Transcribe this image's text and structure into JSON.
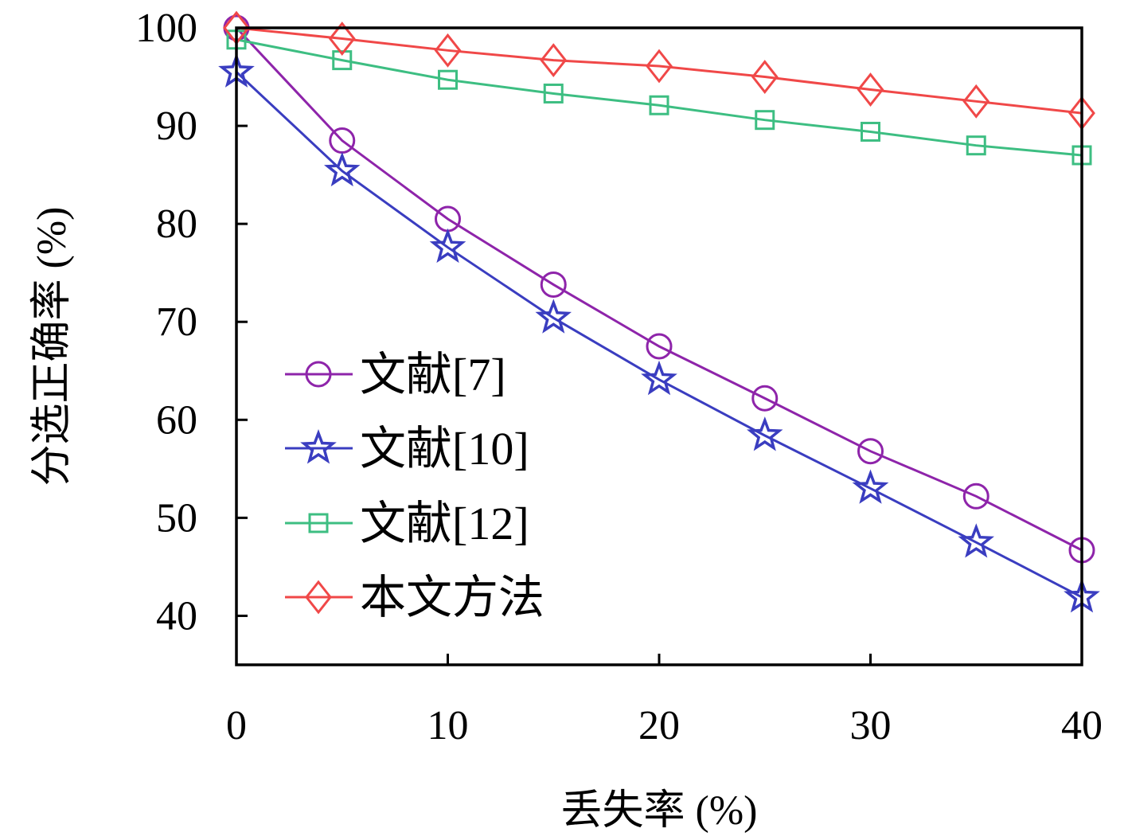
{
  "chart_data": {
    "type": "line",
    "title": "",
    "xlabel": "丢失率 (%)",
    "ylabel": "分选正确率 (%)",
    "xlim": [
      0,
      40
    ],
    "ylim": [
      35,
      100
    ],
    "xticks": [
      0,
      10,
      20,
      30,
      40
    ],
    "yticks": [
      40,
      50,
      60,
      70,
      80,
      90,
      100
    ],
    "grid": false,
    "legend_position": "lower-left",
    "x": [
      0,
      5,
      10,
      15,
      20,
      25,
      30,
      35,
      40
    ],
    "series": [
      {
        "name": "文献[7]",
        "marker": "circle",
        "color": "#8E24AA",
        "values": [
          100,
          88.5,
          80.5,
          73.8,
          67.5,
          62.2,
          56.8,
          52.2,
          46.7
        ]
      },
      {
        "name": "文献[10]",
        "marker": "star",
        "color": "#3A3DC0",
        "values": [
          95.5,
          85.4,
          77.6,
          70.4,
          64.1,
          58.4,
          53.0,
          47.5,
          41.9
        ]
      },
      {
        "name": "文献[12]",
        "marker": "square",
        "color": "#3DBE82",
        "values": [
          98.8,
          96.7,
          94.7,
          93.3,
          92.1,
          90.6,
          89.4,
          88.0,
          87.0
        ]
      },
      {
        "name": "本文方法",
        "marker": "diamond",
        "color": "#F04848",
        "values": [
          100,
          98.9,
          97.7,
          96.7,
          96.1,
          95.0,
          93.7,
          92.5,
          91.3
        ]
      }
    ]
  }
}
